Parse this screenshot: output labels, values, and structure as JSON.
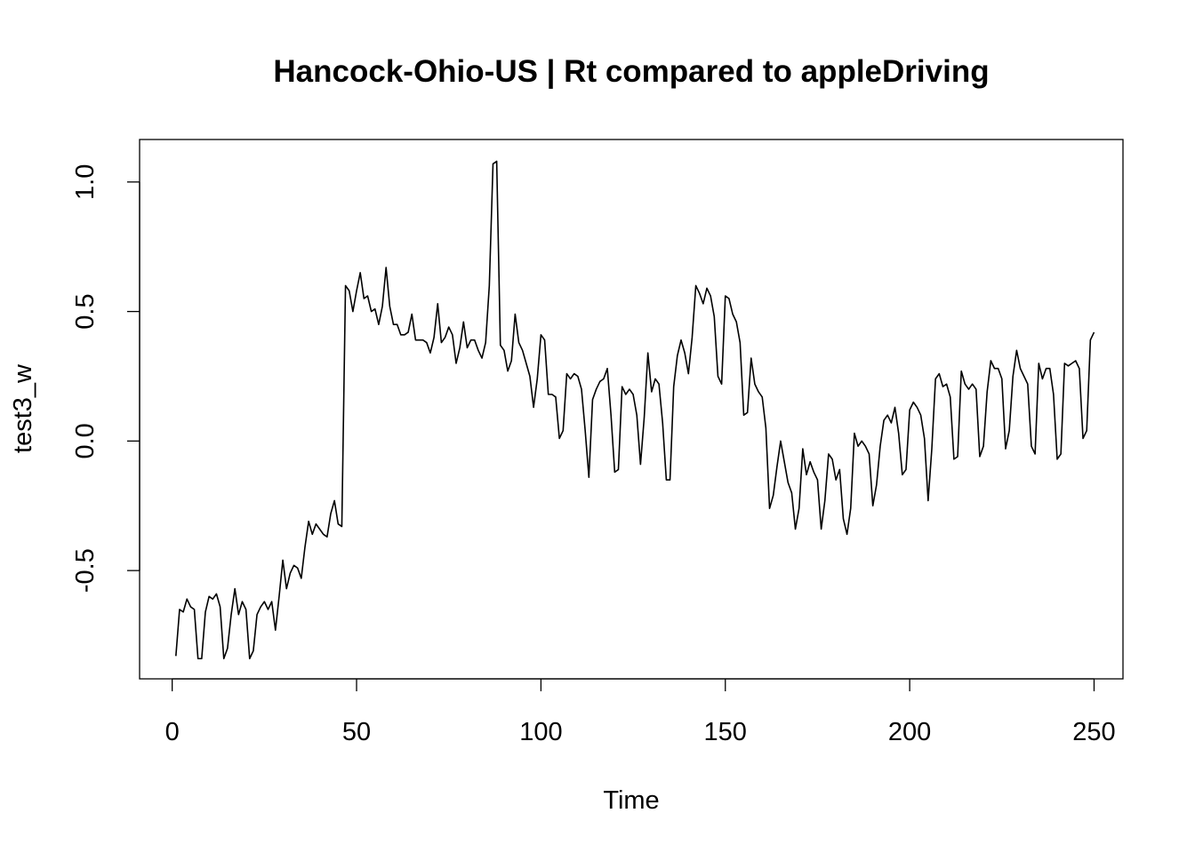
{
  "chart_data": {
    "type": "line",
    "title": "Hancock-Ohio-US | Rt compared to appleDriving",
    "xlabel": "Time",
    "ylabel": "test3_w",
    "xlim": [
      -8.84,
      257.84
    ],
    "ylim": [
      -0.918,
      1.164
    ],
    "x_ticks": [
      0,
      50,
      100,
      150,
      200,
      250
    ],
    "x_tick_labels": [
      "0",
      "50",
      "100",
      "150",
      "200",
      "250"
    ],
    "y_ticks": [
      -0.5,
      0.0,
      0.5,
      1.0
    ],
    "y_tick_labels": [
      "-0.5",
      "0.0",
      "0.5",
      "1.0"
    ],
    "grid": false,
    "series": [
      {
        "color": "#000000",
        "x_start": 1,
        "values": [
          -0.83,
          -0.65,
          -0.66,
          -0.61,
          -0.64,
          -0.65,
          -0.84,
          -0.84,
          -0.66,
          -0.6,
          -0.61,
          -0.59,
          -0.64,
          -0.84,
          -0.8,
          -0.67,
          -0.57,
          -0.67,
          -0.62,
          -0.65,
          -0.84,
          -0.81,
          -0.67,
          -0.64,
          -0.62,
          -0.65,
          -0.62,
          -0.73,
          -0.6,
          -0.46,
          -0.57,
          -0.51,
          -0.48,
          -0.49,
          -0.53,
          -0.41,
          -0.31,
          -0.36,
          -0.32,
          -0.34,
          -0.36,
          -0.37,
          -0.28,
          -0.23,
          -0.32,
          -0.33,
          0.6,
          0.58,
          0.5,
          0.58,
          0.65,
          0.55,
          0.56,
          0.5,
          0.51,
          0.45,
          0.52,
          0.67,
          0.52,
          0.45,
          0.45,
          0.41,
          0.41,
          0.42,
          0.49,
          0.39,
          0.39,
          0.39,
          0.38,
          0.34,
          0.4,
          0.53,
          0.38,
          0.4,
          0.44,
          0.41,
          0.3,
          0.36,
          0.46,
          0.36,
          0.39,
          0.39,
          0.35,
          0.32,
          0.38,
          0.6,
          1.07,
          1.08,
          0.37,
          0.35,
          0.27,
          0.31,
          0.49,
          0.38,
          0.35,
          0.3,
          0.25,
          0.13,
          0.24,
          0.41,
          0.39,
          0.18,
          0.18,
          0.17,
          0.01,
          0.04,
          0.26,
          0.24,
          0.26,
          0.25,
          0.2,
          0.04,
          -0.14,
          0.16,
          0.2,
          0.23,
          0.24,
          0.28,
          0.1,
          -0.12,
          -0.11,
          0.21,
          0.18,
          0.2,
          0.18,
          0.1,
          -0.09,
          0.09,
          0.34,
          0.19,
          0.24,
          0.22,
          0.07,
          -0.15,
          -0.15,
          0.21,
          0.33,
          0.39,
          0.34,
          0.26,
          0.4,
          0.6,
          0.57,
          0.53,
          0.59,
          0.56,
          0.48,
          0.25,
          0.22,
          0.56,
          0.55,
          0.49,
          0.46,
          0.38,
          0.1,
          0.11,
          0.32,
          0.22,
          0.19,
          0.17,
          0.05,
          -0.26,
          -0.21,
          -0.1,
          0.0,
          -0.08,
          -0.16,
          -0.2,
          -0.34,
          -0.26,
          -0.03,
          -0.13,
          -0.08,
          -0.12,
          -0.15,
          -0.34,
          -0.23,
          -0.05,
          -0.07,
          -0.15,
          -0.11,
          -0.3,
          -0.36,
          -0.26,
          0.03,
          -0.02,
          0.0,
          -0.02,
          -0.05,
          -0.25,
          -0.17,
          -0.02,
          0.08,
          0.1,
          0.07,
          0.13,
          0.03,
          -0.13,
          -0.11,
          0.12,
          0.15,
          0.13,
          0.1,
          0.01,
          -0.23,
          -0.03,
          0.24,
          0.26,
          0.21,
          0.22,
          0.17,
          -0.07,
          -0.06,
          0.27,
          0.22,
          0.2,
          0.22,
          0.2,
          -0.06,
          -0.02,
          0.19,
          0.31,
          0.28,
          0.28,
          0.24,
          -0.03,
          0.04,
          0.25,
          0.35,
          0.28,
          0.25,
          0.22,
          -0.02,
          -0.05,
          0.3,
          0.24,
          0.28,
          0.28,
          0.18,
          -0.07,
          -0.05,
          0.3,
          0.29,
          0.3,
          0.31,
          0.28,
          0.01,
          0.04,
          0.39,
          0.42
        ]
      }
    ]
  }
}
